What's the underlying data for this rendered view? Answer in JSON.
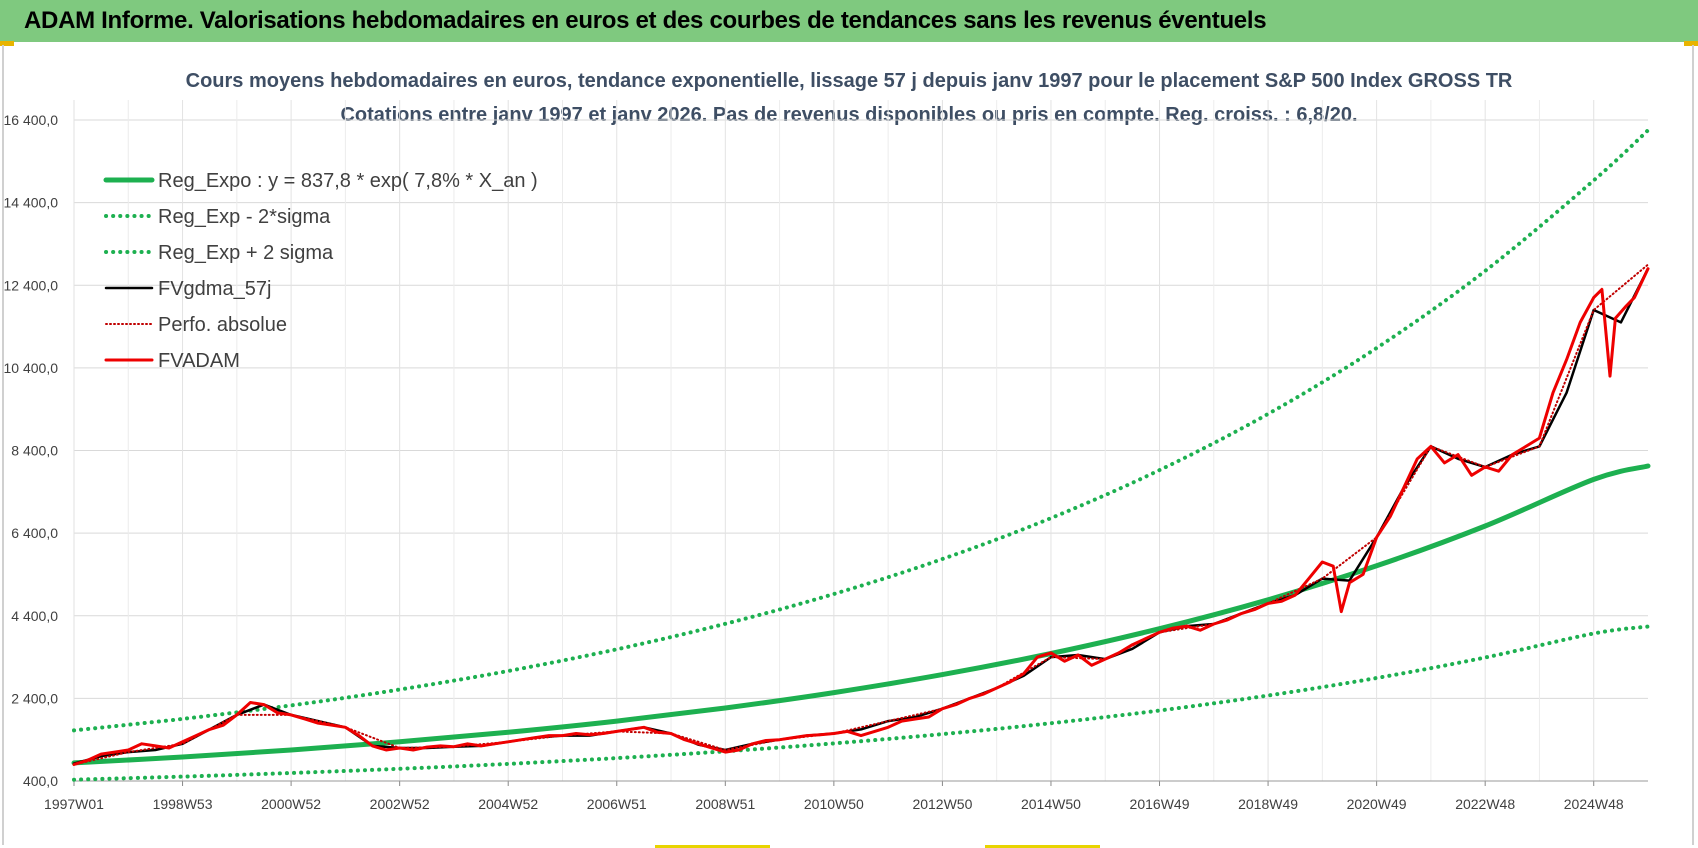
{
  "header": {
    "title": "ADAM Informe. Valorisations hebdomadaires en euros et des courbes de tendances sans les revenus éventuels"
  },
  "colors": {
    "header_bg": "#7fc97f",
    "trend_green": "#1db050",
    "price_red": "#ee0000",
    "smooth_black": "#000000",
    "perf_red": "#c00000"
  },
  "chart_data": {
    "type": "line",
    "title": "Cours moyens hebdomadaires en euros, tendance exponentielle, lissage 57 j depuis janv 1997  pour le placement S&P 500 Index GROSS TR",
    "subtitle": "Cotations entre janv 1997 et janv 2026. Pas de revenus disponibles ou pris  en compte. Reg. croiss. : 6,8/20.",
    "xlabel": "",
    "ylabel": "",
    "xlim": [
      1997.0,
      2026.0
    ],
    "ylim": [
      400,
      16400
    ],
    "y_ticks": [
      400,
      2400,
      4400,
      6400,
      8400,
      10400,
      12400,
      14400,
      16400
    ],
    "y_tick_labels": [
      "400,0",
      "2 400,0",
      "4 400,0",
      "6 400,0",
      "8 400,0",
      "10 400,0",
      "12 400,0",
      "14 400,0",
      "16 400,0"
    ],
    "x_ticks": [
      1997.0,
      1999.0,
      2001.0,
      2003.0,
      2005.0,
      2007.0,
      2009.0,
      2011.0,
      2013.0,
      2015.0,
      2017.0,
      2019.0,
      2021.0,
      2023.0,
      2025.0
    ],
    "x_tick_labels": [
      "1997W01",
      "1998W53",
      "2000W52",
      "2002W52",
      "2004W52",
      "2006W51",
      "2008W51",
      "2010W50",
      "2012W50",
      "2014W50",
      "2016W49",
      "2018W49",
      "2020W49",
      "2022W48",
      "2024W48"
    ],
    "grid": true,
    "legend_position": "top-left",
    "series": [
      {
        "name": "Reg_Expo : y = 837,8 * exp( 7,8% *  X_an )",
        "style": "solid-thick",
        "color": "#1db050",
        "x": [
          1997,
          1999,
          2001,
          2003,
          2005,
          2007,
          2009,
          2011,
          2013,
          2015,
          2017,
          2019,
          2021,
          2023,
          2025,
          2026
        ],
        "values": [
          838,
          982,
          1150,
          1348,
          1579,
          1850,
          2168,
          2540,
          2976,
          3487,
          4086,
          4787,
          5609,
          6573,
          7701,
          8026
        ]
      },
      {
        "name": "Reg_Exp - 2*sigma",
        "style": "dotted",
        "color": "#1db050",
        "x": [
          1997,
          1999,
          2001,
          2003,
          2005,
          2007,
          2009,
          2011,
          2013,
          2015,
          2017,
          2019,
          2021,
          2023,
          2025,
          2026
        ],
        "values": [
          432,
          506,
          593,
          695,
          814,
          954,
          1118,
          1310,
          1535,
          1798,
          2107,
          2469,
          2893,
          3389,
          3971,
          4139
        ]
      },
      {
        "name": "Reg_Exp + 2 sigma",
        "style": "dotted",
        "color": "#1db050",
        "x": [
          1997,
          1999,
          2001,
          2003,
          2005,
          2007,
          2009,
          2011,
          2013,
          2015,
          2017,
          2019,
          2021,
          2023,
          2025,
          2026
        ],
        "values": [
          1625,
          1904,
          2231,
          2614,
          3063,
          3589,
          4205,
          4927,
          5773,
          6764,
          7925,
          9286,
          10880,
          12748,
          14937,
          16150
        ]
      },
      {
        "name": "FVgdma_57j",
        "style": "solid",
        "color": "#000000",
        "x": [
          1997.0,
          1997.5,
          1998.0,
          1998.5,
          1999.0,
          1999.5,
          2000.0,
          2000.5,
          2001.0,
          2001.5,
          2002.0,
          2002.5,
          2003.0,
          2003.5,
          2004.0,
          2004.5,
          2005.0,
          2005.5,
          2006.0,
          2006.5,
          2007.0,
          2007.5,
          2008.0,
          2008.5,
          2009.0,
          2009.5,
          2010.0,
          2010.5,
          2011.0,
          2011.5,
          2012.0,
          2012.5,
          2013.0,
          2013.5,
          2014.0,
          2014.5,
          2015.0,
          2015.5,
          2016.0,
          2016.5,
          2017.0,
          2017.5,
          2018.0,
          2018.5,
          2019.0,
          2019.5,
          2020.0,
          2020.5,
          2021.0,
          2021.5,
          2022.0,
          2022.5,
          2023.0,
          2023.5,
          2024.0,
          2024.5,
          2025.0,
          2025.5,
          2026.0
        ],
        "values": [
          820,
          1000,
          1100,
          1150,
          1300,
          1650,
          2000,
          2250,
          2000,
          1850,
          1700,
          1250,
          1200,
          1200,
          1230,
          1250,
          1350,
          1450,
          1500,
          1500,
          1600,
          1700,
          1550,
          1280,
          1150,
          1300,
          1400,
          1500,
          1550,
          1650,
          1850,
          1950,
          2150,
          2400,
          2650,
          2950,
          3400,
          3450,
          3350,
          3600,
          4000,
          4150,
          4200,
          4450,
          4700,
          4900,
          5300,
          5250,
          6300,
          7500,
          8500,
          8200,
          8000,
          8300,
          8500,
          9800,
          11800,
          11500,
          12800
        ]
      },
      {
        "name": "Perfo. absolue",
        "style": "dotted",
        "color": "#c00000",
        "x": [
          1997.0,
          1998.0,
          1999.0,
          2000.0,
          2001.0,
          2002.0,
          2003.0,
          2004.0,
          2005.0,
          2006.0,
          2007.0,
          2008.0,
          2009.0,
          2010.0,
          2011.0,
          2012.0,
          2013.0,
          2014.0,
          2015.0,
          2016.0,
          2017.0,
          2018.0,
          2019.0,
          2020.0,
          2021.0,
          2022.0,
          2023.0,
          2024.0,
          2025.0,
          2026.0
        ],
        "values": [
          800,
          1100,
          1300,
          2000,
          2000,
          1700,
          1200,
          1230,
          1350,
          1500,
          1600,
          1550,
          1150,
          1400,
          1550,
          1850,
          2150,
          2650,
          3400,
          3350,
          4000,
          4200,
          4700,
          5300,
          6300,
          8500,
          8000,
          8500,
          11800,
          12900
        ]
      },
      {
        "name": "FVADAM",
        "style": "solid-thick",
        "color": "#ee0000",
        "x": [
          1997.0,
          1997.25,
          1997.5,
          1997.75,
          1998.0,
          1998.25,
          1998.5,
          1998.75,
          1999.0,
          1999.25,
          1999.5,
          1999.75,
          2000.0,
          2000.25,
          2000.5,
          2000.75,
          2001.0,
          2001.25,
          2001.5,
          2001.75,
          2002.0,
          2002.25,
          2002.5,
          2002.75,
          2003.0,
          2003.25,
          2003.5,
          2003.75,
          2004.0,
          2004.25,
          2004.5,
          2004.75,
          2005.0,
          2005.25,
          2005.5,
          2005.75,
          2006.0,
          2006.25,
          2006.5,
          2006.75,
          2007.0,
          2007.25,
          2007.5,
          2007.75,
          2008.0,
          2008.25,
          2008.5,
          2008.75,
          2009.0,
          2009.25,
          2009.5,
          2009.75,
          2010.0,
          2010.25,
          2010.5,
          2010.75,
          2011.0,
          2011.25,
          2011.5,
          2011.75,
          2012.0,
          2012.25,
          2012.5,
          2012.75,
          2013.0,
          2013.25,
          2013.5,
          2013.75,
          2014.0,
          2014.25,
          2014.5,
          2014.75,
          2015.0,
          2015.25,
          2015.5,
          2015.75,
          2016.0,
          2016.25,
          2016.5,
          2016.75,
          2017.0,
          2017.25,
          2017.5,
          2017.75,
          2018.0,
          2018.25,
          2018.5,
          2018.75,
          2019.0,
          2019.25,
          2019.5,
          2019.75,
          2020.0,
          2020.2,
          2020.35,
          2020.5,
          2020.75,
          2021.0,
          2021.25,
          2021.5,
          2021.75,
          2022.0,
          2022.25,
          2022.5,
          2022.75,
          2023.0,
          2023.25,
          2023.5,
          2023.75,
          2024.0,
          2024.25,
          2024.5,
          2024.75,
          2025.0,
          2025.15,
          2025.3,
          2025.4,
          2025.6,
          2025.75,
          2026.0
        ],
        "values": [
          800,
          900,
          1050,
          1100,
          1150,
          1300,
          1250,
          1200,
          1350,
          1500,
          1650,
          1750,
          2000,
          2300,
          2250,
          2050,
          2000,
          1900,
          1800,
          1750,
          1700,
          1500,
          1250,
          1150,
          1200,
          1150,
          1220,
          1250,
          1230,
          1300,
          1250,
          1300,
          1350,
          1400,
          1450,
          1500,
          1500,
          1550,
          1520,
          1550,
          1600,
          1650,
          1700,
          1580,
          1550,
          1400,
          1300,
          1200,
          1100,
          1150,
          1300,
          1380,
          1400,
          1450,
          1500,
          1520,
          1550,
          1600,
          1500,
          1600,
          1700,
          1850,
          1900,
          1950,
          2150,
          2250,
          2400,
          2500,
          2650,
          2800,
          3000,
          3400,
          3500,
          3300,
          3450,
          3200,
          3350,
          3500,
          3700,
          3850,
          4000,
          4100,
          4150,
          4050,
          4200,
          4300,
          4450,
          4550,
          4700,
          4750,
          4900,
          5300,
          5700,
          5600,
          4500,
          5200,
          5400,
          6300,
          6800,
          7500,
          8200,
          8500,
          8100,
          8300,
          7800,
          8000,
          7900,
          8300,
          8500,
          8700,
          9800,
          10600,
          11500,
          12100,
          12300,
          10200,
          11600,
          11900,
          12100,
          12800
        ]
      }
    ]
  }
}
